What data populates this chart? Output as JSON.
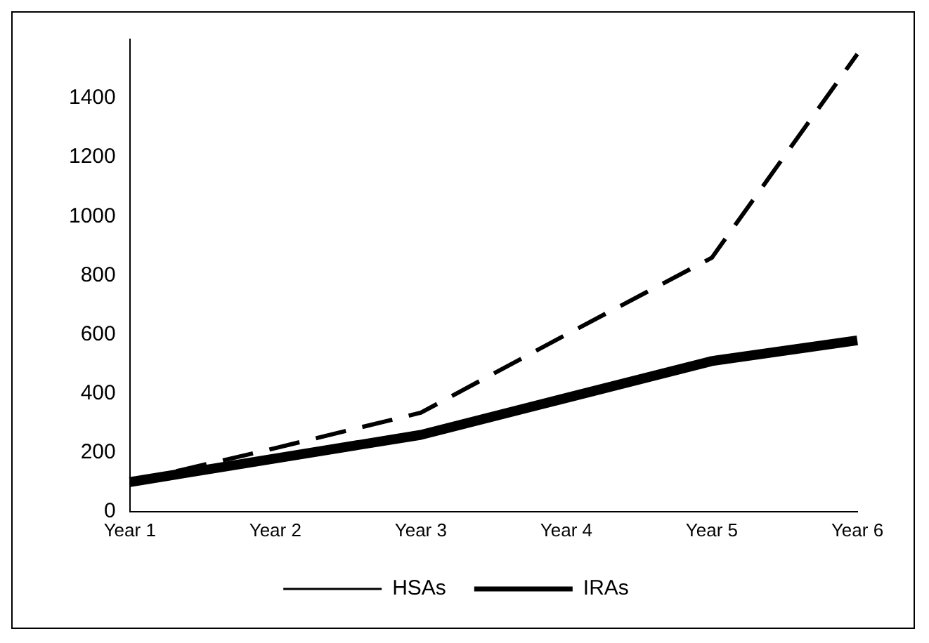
{
  "chart_data": {
    "type": "line",
    "categories": [
      "Year 1",
      "Year 2",
      "Year 3",
      "Year 4",
      "Year 5",
      "Year 6"
    ],
    "series": [
      {
        "name": "HSAs",
        "color": "#000000",
        "line_style": "dashed",
        "values": [
          100,
          215,
          335,
          600,
          860,
          1550
        ]
      },
      {
        "name": "IRAs",
        "color": "#000000",
        "line_style": "solid",
        "values": [
          100,
          180,
          260,
          385,
          510,
          580
        ]
      }
    ],
    "ylim": [
      0,
      1600
    ],
    "yticks": [
      0,
      200,
      400,
      600,
      800,
      1000,
      1200,
      1400
    ],
    "grid": false,
    "legend": "bottom"
  }
}
